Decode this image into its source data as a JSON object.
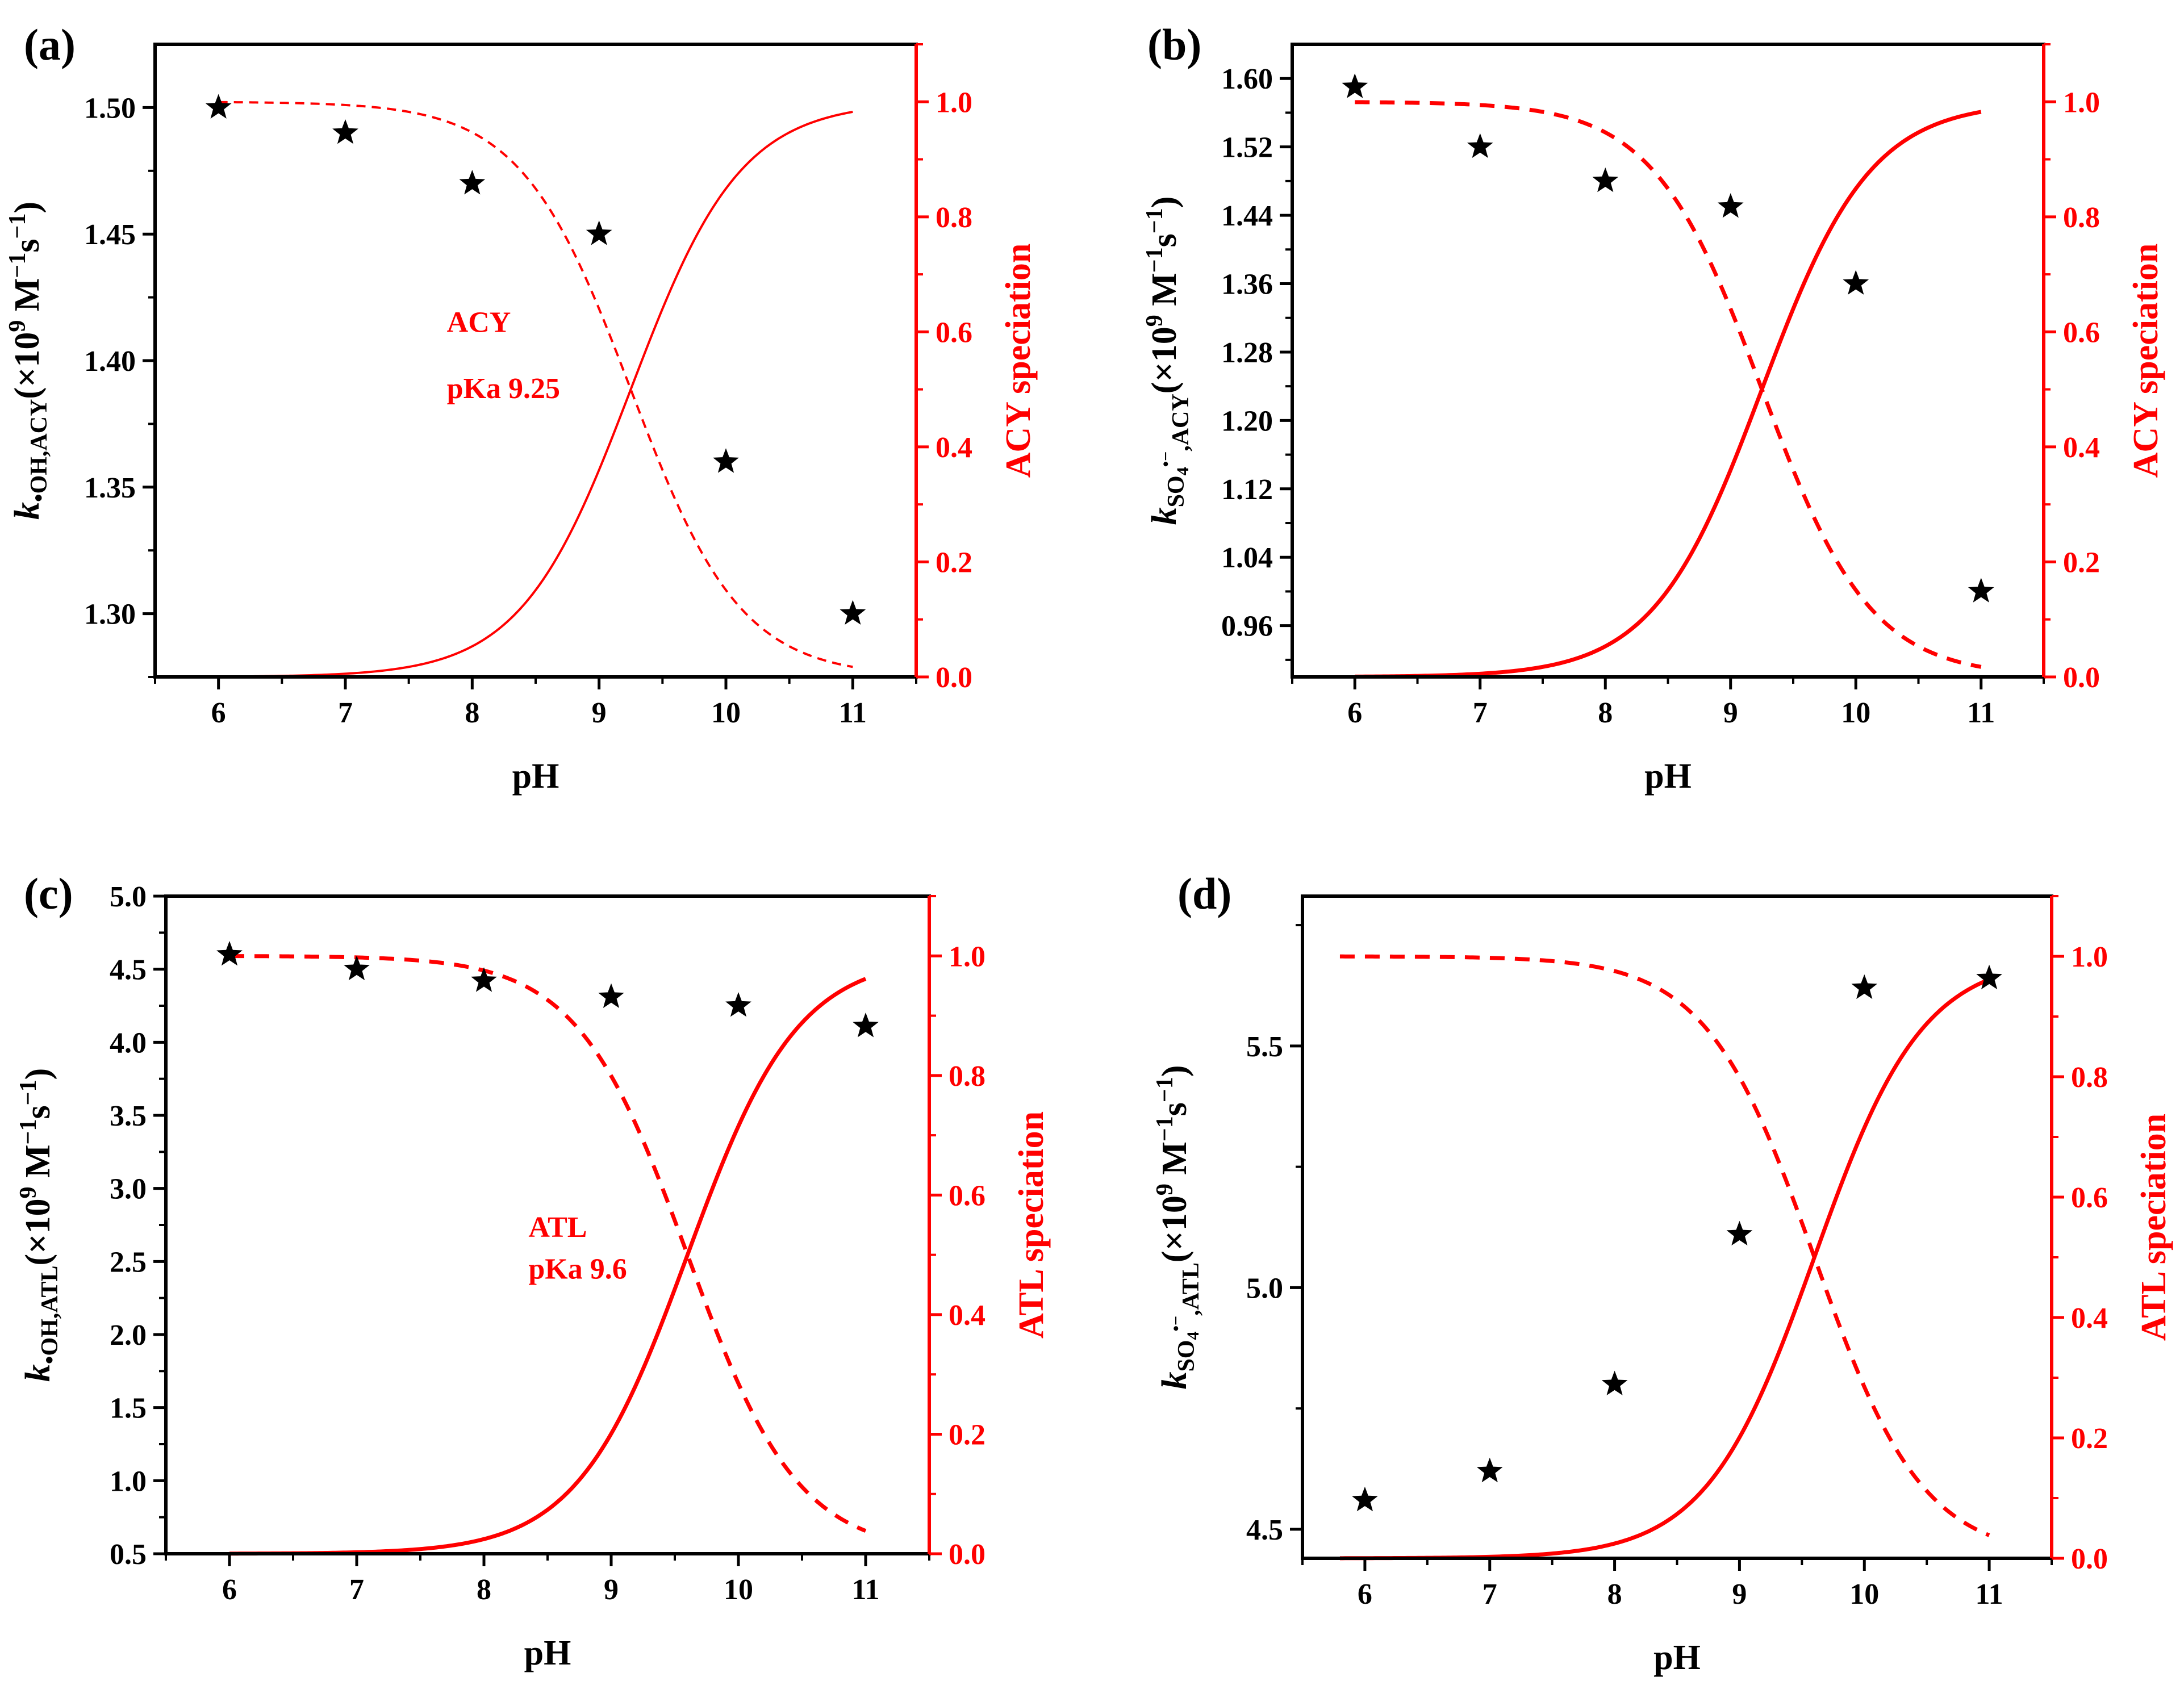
{
  "chart_data": [
    {
      "id": "a",
      "panel_label": "(a)",
      "type": "scatter",
      "x_axis": {
        "label": "pH",
        "range": [
          5.5,
          11.5
        ],
        "ticks": [
          6,
          7,
          8,
          9,
          10,
          11
        ],
        "tick_labels": [
          "6",
          "7",
          "8",
          "9",
          "10",
          "11"
        ]
      },
      "y_axis_left": {
        "label_k": "k",
        "label_sub": "•OH,ACY",
        "label_rest": "(×10",
        "label_sup9": "9",
        "label_M": " M",
        "label_sup1": "−1",
        "label_s": "s",
        "label_sup2": "−1",
        "label_close": ")",
        "range": [
          1.275,
          1.525
        ],
        "ticks": [
          1.3,
          1.35,
          1.4,
          1.45,
          1.5
        ],
        "tick_labels": [
          "1.30",
          "1.35",
          "1.40",
          "1.45",
          "1.50"
        ]
      },
      "y_axis_right": {
        "label": "ACY speciation",
        "range": [
          0.0,
          1.1
        ],
        "ticks": [
          0.0,
          0.2,
          0.4,
          0.6,
          0.8,
          1.0
        ],
        "tick_labels": [
          "0.0",
          "0.2",
          "0.4",
          "0.6",
          "0.8",
          "1.0"
        ]
      },
      "points": {
        "x": [
          6,
          7,
          8,
          9,
          10,
          11
        ],
        "y": [
          1.5,
          1.49,
          1.47,
          1.45,
          1.36,
          1.3
        ]
      },
      "speciation": {
        "pKa": 9.25,
        "x_range": [
          6,
          11
        ],
        "neutral_style": "dashed",
        "ionized_style": "solid"
      },
      "annotation": {
        "line1": "ACY",
        "line2": "pKa  9.25",
        "at_x": 7.8,
        "at_y_line1": 0.6,
        "at_y_line2": 0.485
      },
      "line_weight": "thin"
    },
    {
      "id": "b",
      "panel_label": "(b)",
      "type": "scatter",
      "x_axis": {
        "label": "pH",
        "range": [
          5.5,
          11.5
        ],
        "ticks": [
          6,
          7,
          8,
          9,
          10,
          11
        ],
        "tick_labels": [
          "6",
          "7",
          "8",
          "9",
          "10",
          "11"
        ]
      },
      "y_axis_left": {
        "label_k": "k",
        "label_sub": "SO",
        "label_sub2": "4",
        "label_sub3": "•−",
        "label_sub4": ",ACY",
        "label_rest": "(×10",
        "label_sup9": "9",
        "label_M": " M",
        "label_sup1": "−1",
        "label_s": "s",
        "label_sup2": "−1",
        "label_close": ")",
        "range": [
          0.9,
          1.64
        ],
        "ticks": [
          0.96,
          1.04,
          1.12,
          1.2,
          1.28,
          1.36,
          1.44,
          1.52,
          1.6
        ],
        "tick_labels": [
          "0.96",
          "1.04",
          "1.12",
          "1.20",
          "1.28",
          "1.36",
          "1.44",
          "1.52",
          "1.60"
        ]
      },
      "y_axis_right": {
        "label": "ACY speciation",
        "range": [
          0.0,
          1.1
        ],
        "ticks": [
          0.0,
          0.2,
          0.4,
          0.6,
          0.8,
          1.0
        ],
        "tick_labels": [
          "0.0",
          "0.2",
          "0.4",
          "0.6",
          "0.8",
          "1.0"
        ]
      },
      "points": {
        "x": [
          6,
          7,
          8,
          9,
          10,
          11
        ],
        "y": [
          1.59,
          1.52,
          1.48,
          1.45,
          1.36,
          1.0
        ]
      },
      "speciation": {
        "pKa": 9.25,
        "x_range": [
          6,
          11
        ],
        "neutral_style": "dashed",
        "ionized_style": "solid"
      },
      "line_weight": "thick"
    },
    {
      "id": "c",
      "panel_label": "(c)",
      "type": "scatter",
      "x_axis": {
        "label": "pH",
        "range": [
          5.5,
          11.5
        ],
        "ticks": [
          6,
          7,
          8,
          9,
          10,
          11
        ],
        "tick_labels": [
          "6",
          "7",
          "8",
          "9",
          "10",
          "11"
        ]
      },
      "y_axis_left": {
        "label_k": "k",
        "label_sub": "•OH,ATL",
        "label_rest": "(×10",
        "label_sup9": "9",
        "label_M": " M",
        "label_sup1": "−1",
        "label_s": "s",
        "label_sup2": "−1",
        "label_close": ")",
        "range": [
          0.5,
          5.0
        ],
        "ticks": [
          0.5,
          1.0,
          1.5,
          2.0,
          2.5,
          3.0,
          3.5,
          4.0,
          4.5,
          5.0
        ],
        "tick_labels": [
          "0.5",
          "1.0",
          "1.5",
          "2.0",
          "2.5",
          "3.0",
          "3.5",
          "4.0",
          "4.5",
          "5.0"
        ]
      },
      "y_axis_right": {
        "label": "ATL speciation",
        "range": [
          0.0,
          1.1
        ],
        "ticks": [
          0.0,
          0.2,
          0.4,
          0.6,
          0.8,
          1.0
        ],
        "tick_labels": [
          "0.0",
          "0.2",
          "0.4",
          "0.6",
          "0.8",
          "1.0"
        ]
      },
      "points": {
        "x": [
          6,
          7,
          8,
          9,
          10,
          11
        ],
        "y": [
          4.6,
          4.5,
          4.42,
          4.31,
          4.25,
          4.11
        ]
      },
      "speciation": {
        "pKa": 9.6,
        "x_range": [
          6,
          11
        ],
        "neutral_style": "dashed",
        "ionized_style": "solid"
      },
      "annotation": {
        "line1": "ATL",
        "line2": "pKa  9.6",
        "at_x": 8.35,
        "at_y_line1": 0.53,
        "at_y_line2": 0.46
      },
      "line_weight": "thick"
    },
    {
      "id": "d",
      "panel_label": "(d)",
      "type": "scatter",
      "x_axis": {
        "label": "pH",
        "range": [
          5.5,
          11.5
        ],
        "ticks": [
          6,
          7,
          8,
          9,
          10,
          11
        ],
        "tick_labels": [
          "6",
          "7",
          "8",
          "9",
          "10",
          "11"
        ]
      },
      "y_axis_left": {
        "label_k": "k",
        "label_sub": "SO",
        "label_sub2": "4",
        "label_sub3": "•−",
        "label_sub4": ",ATL",
        "label_rest": "(×10",
        "label_sup9": "9",
        "label_M": " M",
        "label_sup1": "−1",
        "label_s": "s",
        "label_sup2": "−1",
        "label_close": ")",
        "range": [
          4.44,
          5.81
        ],
        "ticks": [
          4.5,
          5.0,
          5.5
        ],
        "tick_labels": [
          "4.5",
          "5.0",
          "5.5"
        ]
      },
      "y_axis_right": {
        "label": "ATL speciation",
        "range": [
          0.0,
          1.1
        ],
        "ticks": [
          0.0,
          0.2,
          0.4,
          0.6,
          0.8,
          1.0
        ],
        "tick_labels": [
          "0.0",
          "0.2",
          "0.4",
          "0.6",
          "0.8",
          "1.0"
        ]
      },
      "points": {
        "x": [
          6,
          7,
          8,
          9,
          10,
          11
        ],
        "y": [
          4.56,
          4.62,
          4.8,
          5.11,
          5.62,
          5.64
        ]
      },
      "speciation": {
        "pKa": 9.6,
        "x_range": [
          5.8,
          11
        ],
        "neutral_style": "dashed",
        "ionized_style": "solid"
      },
      "line_weight": "thick"
    }
  ],
  "colors": {
    "axis": "#000000",
    "right_axis": "#ff0000",
    "curves": "#ff0000",
    "points": "#000000",
    "annotation": "#ff0000"
  }
}
